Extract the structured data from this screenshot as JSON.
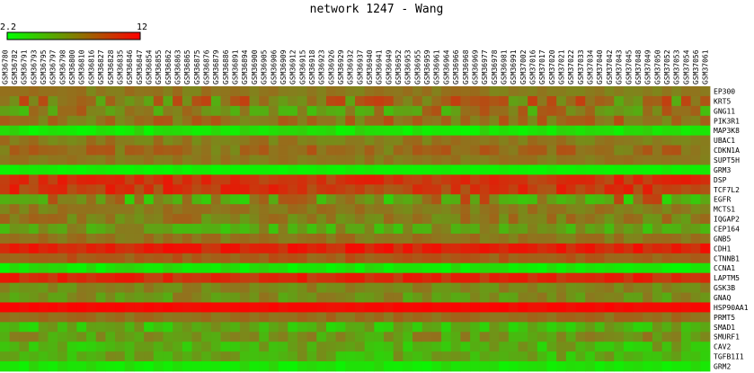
{
  "chart_data": {
    "type": "heatmap",
    "title": "network 1247 - Wang",
    "color_scale": {
      "min": 2.2,
      "max": 12,
      "min_label": "2.2",
      "max_label": "12",
      "low_color": "#00ff00",
      "high_color": "#ff0000"
    },
    "columns": [
      "GSM36780",
      "GSM36782",
      "GSM36791",
      "GSM36793",
      "GSM36795",
      "GSM36797",
      "GSM36798",
      "GSM36800",
      "GSM36810",
      "GSM36816",
      "GSM36827",
      "GSM36828",
      "GSM36835",
      "GSM36846",
      "GSM36847",
      "GSM36854",
      "GSM36855",
      "GSM36862",
      "GSM36863",
      "GSM36865",
      "GSM36875",
      "GSM36876",
      "GSM36879",
      "GSM36886",
      "GSM36891",
      "GSM36894",
      "GSM36900",
      "GSM36905",
      "GSM36906",
      "GSM36909",
      "GSM36912",
      "GSM36915",
      "GSM36918",
      "GSM36923",
      "GSM36926",
      "GSM36929",
      "GSM36932",
      "GSM36937",
      "GSM36940",
      "GSM36941",
      "GSM36949",
      "GSM36952",
      "GSM36953",
      "GSM36955",
      "GSM36959",
      "GSM36961",
      "GSM36964",
      "GSM36966",
      "GSM36968",
      "GSM36969",
      "GSM36977",
      "GSM36978",
      "GSM36981",
      "GSM36991",
      "GSM37002",
      "GSM37016",
      "GSM37017",
      "GSM37020",
      "GSM37021",
      "GSM37022",
      "GSM37033",
      "GSM37034",
      "GSM37040",
      "GSM37042",
      "GSM37043",
      "GSM37045",
      "GSM37048",
      "GSM37049",
      "GSM37050",
      "GSM37052",
      "GSM37053",
      "GSM37054",
      "GSM37056",
      "GSM37061"
    ],
    "rows": [
      {
        "gene": "EP300",
        "base": 0.5,
        "spread": 0.06
      },
      {
        "gene": "KRT5",
        "base": 0.52,
        "spread": 0.22
      },
      {
        "gene": "GNG11",
        "base": 0.45,
        "spread": 0.22
      },
      {
        "gene": "PIK3R1",
        "base": 0.55,
        "spread": 0.14
      },
      {
        "gene": "MAP3K8",
        "base": 0.1,
        "spread": 0.08
      },
      {
        "gene": "UBAC1",
        "base": 0.5,
        "spread": 0.08
      },
      {
        "gene": "CDKN1A",
        "base": 0.55,
        "spread": 0.12
      },
      {
        "gene": "SUPT5H",
        "base": 0.5,
        "spread": 0.05
      },
      {
        "gene": "GRM3",
        "base": 0.06,
        "spread": 0.03
      },
      {
        "gene": "DSP",
        "base": 0.78,
        "spread": 0.12
      },
      {
        "gene": "TCF7L2",
        "base": 0.76,
        "spread": 0.15
      },
      {
        "gene": "EGFR",
        "base": 0.45,
        "spread": 0.3
      },
      {
        "gene": "MCTS1",
        "base": 0.5,
        "spread": 0.08
      },
      {
        "gene": "IQGAP2",
        "base": 0.48,
        "spread": 0.12
      },
      {
        "gene": "CEP164",
        "base": 0.35,
        "spread": 0.15
      },
      {
        "gene": "GNB5",
        "base": 0.52,
        "spread": 0.07
      },
      {
        "gene": "CDH1",
        "base": 0.86,
        "spread": 0.1
      },
      {
        "gene": "CTNNB1",
        "base": 0.62,
        "spread": 0.08
      },
      {
        "gene": "CCNA1",
        "base": 0.1,
        "spread": 0.08
      },
      {
        "gene": "LAPTM5",
        "base": 0.82,
        "spread": 0.1
      },
      {
        "gene": "GSK3B",
        "base": 0.45,
        "spread": 0.08
      },
      {
        "gene": "GNAQ",
        "base": 0.42,
        "spread": 0.12
      },
      {
        "gene": "HSP90AA1",
        "base": 0.96,
        "spread": 0.03
      },
      {
        "gene": "PRMT5",
        "base": 0.55,
        "spread": 0.06
      },
      {
        "gene": "SMAD1",
        "base": 0.28,
        "spread": 0.15
      },
      {
        "gene": "SMURF1",
        "base": 0.4,
        "spread": 0.15
      },
      {
        "gene": "CAV2",
        "base": 0.28,
        "spread": 0.15
      },
      {
        "gene": "TGFB1I1",
        "base": 0.3,
        "spread": 0.15
      },
      {
        "gene": "GRM2",
        "base": 0.1,
        "spread": 0.06
      }
    ]
  }
}
